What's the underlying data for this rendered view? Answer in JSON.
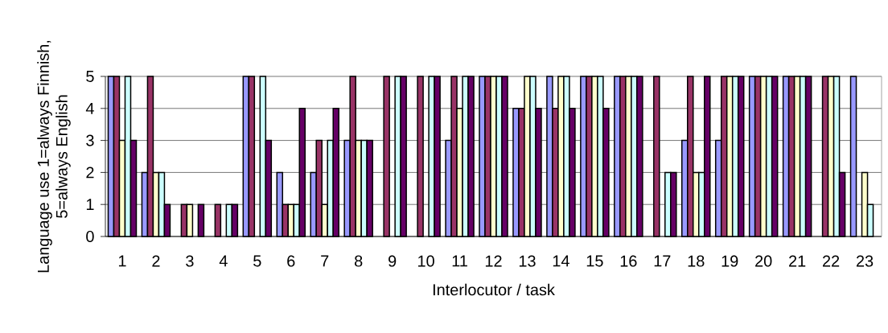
{
  "chart_data": {
    "type": "bar",
    "xlabel": "Interlocutor / task",
    "ylabel": "Language use 1=always Finnish, 5=always English",
    "categories": [
      "1",
      "2",
      "3",
      "4",
      "5",
      "6",
      "7",
      "8",
      "9",
      "10",
      "11",
      "12",
      "13",
      "14",
      "15",
      "16",
      "17",
      "18",
      "19",
      "20",
      "21",
      "22",
      "23"
    ],
    "series": [
      {
        "color": "#9999ff",
        "values": [
          5,
          2,
          null,
          null,
          5,
          2,
          2,
          3,
          null,
          null,
          3,
          5,
          4,
          5,
          5,
          5,
          null,
          3,
          3,
          5,
          5,
          null,
          5
        ]
      },
      {
        "color": "#993366",
        "values": [
          5,
          5,
          1,
          1,
          5,
          1,
          3,
          5,
          5,
          5,
          5,
          5,
          4,
          4,
          5,
          5,
          5,
          5,
          5,
          5,
          5,
          5,
          null
        ]
      },
      {
        "color": "#ffffcc",
        "values": [
          3,
          2,
          1,
          null,
          null,
          1,
          1,
          3,
          null,
          null,
          4,
          5,
          5,
          5,
          5,
          5,
          null,
          2,
          5,
          5,
          5,
          5,
          2
        ]
      },
      {
        "color": "#ccffff",
        "values": [
          5,
          2,
          null,
          1,
          5,
          1,
          3,
          3,
          5,
          5,
          5,
          5,
          5,
          5,
          5,
          5,
          2,
          2,
          5,
          5,
          5,
          5,
          1
        ]
      },
      {
        "color": "#660066",
        "values": [
          3,
          1,
          1,
          1,
          3,
          4,
          4,
          3,
          5,
          5,
          5,
          5,
          4,
          4,
          4,
          5,
          2,
          5,
          5,
          5,
          5,
          2,
          null
        ]
      }
    ],
    "ylim": [
      0,
      5
    ],
    "yticks": [
      0,
      1,
      2,
      3,
      4,
      5
    ],
    "grid": "y"
  }
}
